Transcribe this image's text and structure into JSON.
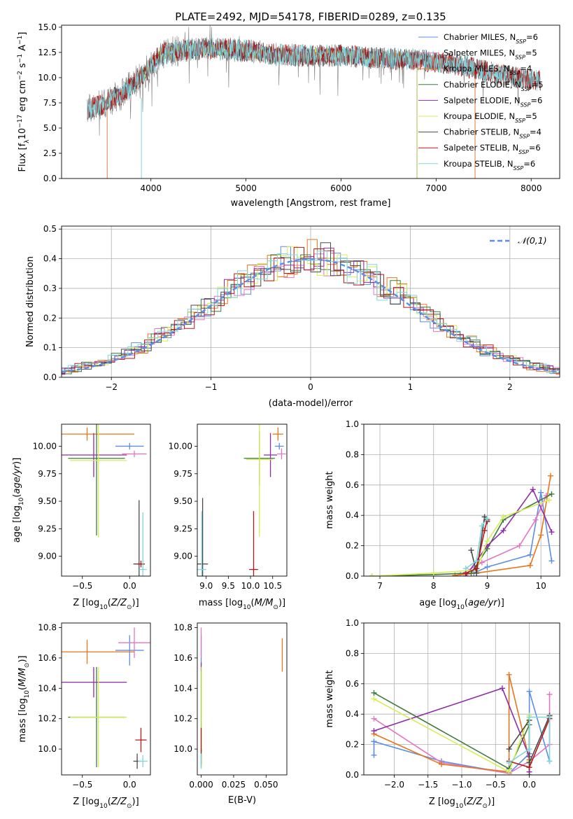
{
  "figure": {
    "title": "PLATE=2492, MJD=54178, FIBERID=0289, z=0.135"
  },
  "colors": {
    "Chabrier MILES": "#5b8ee6",
    "Salpeter MILES": "#e377c2",
    "Kroupa MILES": "#e8751a",
    "Chabrier ELODIE": "#3d7a3d",
    "Salpeter ELODIE": "#8e2ca8",
    "Kroupa ELODIE": "#d4ee57",
    "Chabrier STELIB": "#4a4a4a",
    "Salpeter STELIB": "#b51818",
    "Kroupa STELIB": "#7fd6dc",
    "data": "#808080"
  },
  "chart_data": [
    {
      "id": "spectrum",
      "type": "line",
      "xlabel": "wavelength [Angstrom, rest frame]",
      "ylabel": "Flux [f_λ 10^-17 erg cm^-2 s^-1 A^-1]",
      "xlim": [
        3060,
        8300
      ],
      "ylim": [
        0,
        15.2
      ],
      "xticks": [
        4000,
        5000,
        6000,
        7000,
        8000
      ],
      "yticks": [
        0.0,
        2.5,
        5.0,
        7.5,
        10.0,
        12.5,
        15.0
      ],
      "legend": "top-right",
      "legend_entries": [
        {
          "model": "Chabrier MILES",
          "prefix": "Chabrier MILES, N",
          "sub": "SSP",
          "suffix": "=6"
        },
        {
          "model": "Salpeter MILES",
          "prefix": "Salpeter MILES, N",
          "sub": "SSP",
          "suffix": "=5"
        },
        {
          "model": "Kroupa MILES",
          "prefix": "Kroupa MILES, N",
          "sub": "SSP",
          "suffix": "=4"
        },
        {
          "model": "Chabrier ELODIE",
          "prefix": "Chabrier ELODIE, N",
          "sub": "SSP",
          "suffix": "=5"
        },
        {
          "model": "Salpeter ELODIE",
          "prefix": "Salpeter ELODIE, N",
          "sub": "SSP",
          "suffix": "=6"
        },
        {
          "model": "Kroupa ELODIE",
          "prefix": "Kroupa ELODIE, N",
          "sub": "SSP",
          "suffix": "=5"
        },
        {
          "model": "Chabrier STELIB",
          "prefix": "Chabrier STELIB, N",
          "sub": "SSP",
          "suffix": "=4"
        },
        {
          "model": "Salpeter STELIB",
          "prefix": "Salpeter STELIB, N",
          "sub": "SSP",
          "suffix": "=6"
        },
        {
          "model": "Kroupa STELIB",
          "prefix": "Kroupa STELIB, N",
          "sub": "SSP",
          "suffix": "=6"
        }
      ],
      "continuum": {
        "x": [
          3330,
          3500,
          3700,
          3900,
          4100,
          4300,
          4600,
          5000,
          5300,
          5600,
          6000,
          6400,
          6800,
          7200,
          7600,
          8000,
          8100
        ],
        "y": [
          6.8,
          7.4,
          8.4,
          10.1,
          12.3,
          12.7,
          12.9,
          12.7,
          12.3,
          12.2,
          12.2,
          11.9,
          11.8,
          11.3,
          10.5,
          9.8,
          9.6
        ]
      },
      "model_ranges": [
        {
          "model": "Chabrier MILES",
          "x0": 3540,
          "x1": 7410
        },
        {
          "model": "Salpeter MILES",
          "x0": 3540,
          "x1": 7410
        },
        {
          "model": "Kroupa MILES",
          "x0": 3540,
          "x1": 7410
        },
        {
          "model": "Chabrier ELODIE",
          "x0": 3900,
          "x1": 6800
        },
        {
          "model": "Salpeter ELODIE",
          "x0": 3900,
          "x1": 6800
        },
        {
          "model": "Kroupa ELODIE",
          "x0": 3900,
          "x1": 6800
        },
        {
          "model": "Chabrier STELIB",
          "x0": 3330,
          "x1": 8100
        },
        {
          "model": "Salpeter STELIB",
          "x0": 3330,
          "x1": 8100
        },
        {
          "model": "Kroupa STELIB",
          "x0": 3330,
          "x1": 8100
        }
      ]
    },
    {
      "id": "residuals",
      "type": "step",
      "xlabel": "(data-model)/error",
      "ylabel": "Normed distribution",
      "xlim": [
        -2.5,
        2.5
      ],
      "ylim": [
        0,
        0.51
      ],
      "xticks": [
        -2,
        -1,
        0,
        1,
        2
      ],
      "yticks": [
        0.0,
        0.1,
        0.2,
        0.3,
        0.4,
        0.5
      ],
      "bin_width": 0.1,
      "reference": {
        "label": "𝒩(0,1)",
        "mean": 0,
        "sigma": 1
      },
      "legend": "top-right",
      "grid": true
    },
    {
      "id": "age-vs-Z",
      "type": "errorbar",
      "xlabel": "Z [log10(Z/Z⊙)]",
      "ylabel": "age  [log10(age/yr)]",
      "xlim": [
        -0.72,
        0.22
      ],
      "ylim": [
        8.82,
        10.2
      ],
      "xticks": [
        -0.5,
        0.0
      ],
      "yticks": [
        9.0,
        9.25,
        9.5,
        9.75,
        10.0
      ],
      "points": [
        {
          "model": "Chabrier MILES",
          "x": 0.0,
          "y": 10.0,
          "xerr": 0.15,
          "yerr": 0.03
        },
        {
          "model": "Salpeter MILES",
          "x": 0.05,
          "y": 9.93,
          "xerr": 0.13,
          "yerr": 0.03
        },
        {
          "model": "Kroupa MILES",
          "x": -0.45,
          "y": 10.11,
          "xerr": 0.5,
          "yerr": 0.06
        },
        {
          "model": "Chabrier ELODIE",
          "x": -0.35,
          "y": 9.89,
          "xerr": 0.3,
          "yerr": 0.7
        },
        {
          "model": "Salpeter ELODIE",
          "x": -0.38,
          "y": 9.92,
          "xerr": 0.35,
          "yerr": 0.2
        },
        {
          "model": "Kroupa ELODIE",
          "x": -0.33,
          "y": 9.87,
          "xerr": 0.3,
          "yerr": 0.7
        },
        {
          "model": "Chabrier STELIB",
          "x": 0.1,
          "y": 8.93,
          "xerr": 0.06,
          "yerr": 0.58
        },
        {
          "model": "Salpeter STELIB",
          "x": 0.12,
          "y": 8.93,
          "xerr": 0.04,
          "yerr": 0.03
        },
        {
          "model": "Kroupa STELIB",
          "x": 0.14,
          "y": 8.88,
          "xerr": 0.04,
          "yerr": 0.52
        }
      ]
    },
    {
      "id": "age-vs-mass",
      "type": "errorbar",
      "xlabel": "mass [log10(M/M⊙)]",
      "ylabel": "",
      "xlim": [
        8.8,
        10.82
      ],
      "ylim": [
        8.82,
        10.2
      ],
      "xticks": [
        9.0,
        9.5,
        10.0,
        10.5
      ],
      "yticks": [
        9.0,
        9.25,
        9.5,
        9.75,
        10.0
      ],
      "points": [
        {
          "model": "Chabrier MILES",
          "x": 10.65,
          "y": 10.0,
          "xerr": 0.1,
          "yerr": 0.03
        },
        {
          "model": "Salpeter MILES",
          "x": 10.7,
          "y": 9.93,
          "xerr": 0.1,
          "yerr": 0.05
        },
        {
          "model": "Kroupa MILES",
          "x": 10.62,
          "y": 10.11,
          "xerr": 0.12,
          "yerr": 0.06
        },
        {
          "model": "Chabrier ELODIE",
          "x": 10.2,
          "y": 9.89,
          "xerr": 0.35,
          "yerr": 0.25
        },
        {
          "model": "Salpeter ELODIE",
          "x": 10.45,
          "y": 9.92,
          "xerr": 0.15,
          "yerr": 0.2
        },
        {
          "model": "Kroupa ELODIE",
          "x": 10.2,
          "y": 9.88,
          "xerr": 0.3,
          "yerr": 0.7
        },
        {
          "model": "Chabrier STELIB",
          "x": 8.92,
          "y": 8.93,
          "xerr": 0.12,
          "yerr": 0.6
        },
        {
          "model": "Salpeter STELIB",
          "x": 10.07,
          "y": 8.88,
          "xerr": 0.1,
          "yerr": 0.53
        },
        {
          "model": "Kroupa STELIB",
          "x": 8.9,
          "y": 8.88,
          "xerr": 0.1,
          "yerr": 0.53
        }
      ]
    },
    {
      "id": "mass-vs-Z",
      "type": "errorbar",
      "xlabel": "Z [log10(Z/Z⊙)]",
      "ylabel": "mass [log10(M/M⊙)]",
      "xlim": [
        -0.72,
        0.22
      ],
      "ylim": [
        9.83,
        10.83
      ],
      "xticks": [
        -0.5,
        0.0
      ],
      "yticks": [
        10.0,
        10.2,
        10.4,
        10.6,
        10.8
      ],
      "points": [
        {
          "model": "Chabrier MILES",
          "x": 0.0,
          "y": 10.65,
          "xerr": 0.15,
          "yerr": 0.1
        },
        {
          "model": "Salpeter MILES",
          "x": 0.05,
          "y": 10.7,
          "xerr": 0.17,
          "yerr": 0.1
        },
        {
          "model": "Kroupa MILES",
          "x": -0.45,
          "y": 10.64,
          "xerr": 0.5,
          "yerr": 0.08
        },
        {
          "model": "Chabrier ELODIE",
          "x": -0.35,
          "y": 10.21,
          "xerr": 0.3,
          "yerr": 0.33
        },
        {
          "model": "Salpeter ELODIE",
          "x": -0.38,
          "y": 10.44,
          "xerr": 0.35,
          "yerr": 0.1
        },
        {
          "model": "Kroupa ELODIE",
          "x": -0.33,
          "y": 10.21,
          "xerr": 0.3,
          "yerr": 0.33
        },
        {
          "model": "Chabrier STELIB",
          "x": 0.08,
          "y": 9.92,
          "xerr": 0.04,
          "yerr": 0.05
        },
        {
          "model": "Salpeter STELIB",
          "x": 0.12,
          "y": 10.06,
          "xerr": 0.06,
          "yerr": 0.08
        },
        {
          "model": "Kroupa STELIB",
          "x": 0.14,
          "y": 9.92,
          "xerr": 0.05,
          "yerr": 0.04
        }
      ]
    },
    {
      "id": "mass-vs-EBV",
      "type": "errorbar",
      "xlabel": "E(B-V)",
      "ylabel": "",
      "xlim": [
        -0.003,
        0.066
      ],
      "ylim": [
        9.83,
        10.83
      ],
      "xticks": [
        0.0,
        0.025,
        0.05
      ],
      "xticklabels": [
        "0.000",
        "0.025",
        "0.050"
      ],
      "yticks": [
        10.0,
        10.2,
        10.4,
        10.6,
        10.8
      ],
      "points": [
        {
          "model": "Chabrier MILES",
          "x": 0.0,
          "y": 10.65,
          "xerr": 0.0,
          "yerr": 0.1
        },
        {
          "model": "Salpeter MILES",
          "x": 0.0,
          "y": 10.7,
          "xerr": 0.0,
          "yerr": 0.1
        },
        {
          "model": "Kroupa MILES",
          "x": 0.0625,
          "y": 10.62,
          "xerr": 0.0,
          "yerr": 0.11
        },
        {
          "model": "Chabrier ELODIE",
          "x": 0.0,
          "y": 10.21,
          "xerr": 0.0,
          "yerr": 0.33
        },
        {
          "model": "Salpeter ELODIE",
          "x": 0.0,
          "y": 10.54,
          "xerr": 0.0,
          "yerr": 0.03
        },
        {
          "model": "Kroupa ELODIE",
          "x": 0.0002,
          "y": 10.21,
          "xerr": 0.0,
          "yerr": 0.33
        },
        {
          "model": "Chabrier STELIB",
          "x": 0.0,
          "y": 9.95,
          "xerr": 0.0,
          "yerr": 0.05
        },
        {
          "model": "Salpeter STELIB",
          "x": 0.0,
          "y": 10.06,
          "xerr": 0.0,
          "yerr": 0.08
        },
        {
          "model": "Kroupa STELIB",
          "x": 0.0,
          "y": 9.92,
          "xerr": 0.0,
          "yerr": 0.05
        }
      ]
    },
    {
      "id": "weight-vs-age",
      "type": "line",
      "xlabel": "age  [log10(age/yr)]",
      "ylabel": "mass weight",
      "xlim": [
        6.7,
        10.35
      ],
      "ylim": [
        0,
        1.0
      ],
      "xticks": [
        7,
        8,
        9,
        10
      ],
      "yticks": [
        0.0,
        0.2,
        0.4,
        0.6,
        0.8,
        1.0
      ],
      "grid": true,
      "series": [
        {
          "model": "Chabrier MILES",
          "x": [
            8.75,
            9.0,
            9.8,
            10.0,
            10.2
          ],
          "y": [
            0.02,
            0.06,
            0.14,
            0.55,
            0.1
          ]
        },
        {
          "model": "Salpeter MILES",
          "x": [
            8.5,
            8.9,
            9.6,
            9.9,
            10.1
          ],
          "y": [
            0.01,
            0.09,
            0.2,
            0.37,
            0.53
          ]
        },
        {
          "model": "Kroupa MILES",
          "x": [
            8.4,
            8.8,
            9.8,
            10.0,
            10.18
          ],
          "y": [
            0.005,
            0.02,
            0.07,
            0.27,
            0.66
          ]
        },
        {
          "model": "Chabrier ELODIE",
          "x": [
            6.85,
            8.0,
            8.7,
            9.0,
            9.3,
            10.2
          ],
          "y": [
            0.0,
            0.01,
            0.02,
            0.18,
            0.37,
            0.54
          ]
        },
        {
          "model": "Salpeter ELODIE",
          "x": [
            8.6,
            9.0,
            9.3,
            9.85,
            10.2
          ],
          "y": [
            0.0,
            0.2,
            0.3,
            0.57,
            0.29
          ]
        },
        {
          "model": "Kroupa ELODIE",
          "x": [
            6.85,
            8.0,
            8.8,
            9.0,
            9.3,
            10.15
          ],
          "y": [
            0.0,
            0.02,
            0.04,
            0.23,
            0.39,
            0.5
          ]
        },
        {
          "model": "Chabrier STELIB",
          "x": [
            8.7,
            8.8,
            8.95,
            9.0
          ],
          "y": [
            0.17,
            0.02,
            0.39,
            0.36
          ]
        },
        {
          "model": "Salpeter STELIB",
          "x": [
            8.6,
            8.8,
            8.95,
            9.0
          ],
          "y": [
            0.02,
            0.05,
            0.3,
            0.37
          ]
        },
        {
          "model": "Kroupa STELIB",
          "x": [
            8.6,
            8.8,
            8.9,
            9.0
          ],
          "y": [
            0.05,
            0.1,
            0.33,
            0.38
          ]
        }
      ]
    },
    {
      "id": "weight-vs-Z",
      "type": "line",
      "xlabel": "Z [log10(Z/Z⊙)]",
      "ylabel": "mass weight",
      "xlim": [
        -2.45,
        0.45
      ],
      "ylim": [
        0,
        1.0
      ],
      "xticks": [
        -2.0,
        -1.5,
        -1.0,
        -0.5,
        0.0
      ],
      "yticks": [
        0.0,
        0.2,
        0.4,
        0.6,
        0.8,
        1.0
      ],
      "grid": true,
      "series": [
        {
          "model": "Chabrier MILES",
          "x": [
            -2.3,
            -2.3,
            -1.3,
            -0.3,
            0.0,
            0.0,
            0.3
          ],
          "y": [
            0.13,
            0.22,
            0.09,
            0.01,
            0.14,
            0.55,
            0.09
          ]
        },
        {
          "model": "Salpeter MILES",
          "x": [
            -2.3,
            -1.3,
            -0.3,
            0.0,
            0.3,
            0.3
          ],
          "y": [
            0.37,
            0.08,
            0.01,
            0.09,
            0.2,
            0.53
          ]
        },
        {
          "model": "Kroupa MILES",
          "x": [
            -2.3,
            -1.3,
            -0.3,
            -0.3,
            0.0
          ],
          "y": [
            0.27,
            0.07,
            0.02,
            0.66,
            0.1
          ]
        },
        {
          "model": "Chabrier ELODIE",
          "x": [
            -2.3,
            -0.3,
            0.0,
            0.0
          ],
          "y": [
            0.54,
            0.04,
            0.33,
            0.0
          ]
        },
        {
          "model": "Salpeter ELODIE",
          "x": [
            -2.3,
            -0.4,
            0.0,
            0.0
          ],
          "y": [
            0.29,
            0.57,
            0.12,
            0.02
          ]
        },
        {
          "model": "Kroupa ELODIE",
          "x": [
            -2.3,
            -0.3,
            0.0,
            0.0
          ],
          "y": [
            0.5,
            0.02,
            0.39,
            0.09
          ]
        },
        {
          "model": "Chabrier STELIB",
          "x": [
            -0.3,
            0.0,
            0.0,
            0.3
          ],
          "y": [
            0.17,
            0.36,
            0.08,
            0.39
          ]
        },
        {
          "model": "Salpeter STELIB",
          "x": [
            -0.3,
            0.0,
            0.3
          ],
          "y": [
            0.09,
            0.05,
            0.37
          ]
        },
        {
          "model": "Kroupa STELIB",
          "x": [
            -0.3,
            0.0,
            0.0,
            0.3,
            0.3
          ],
          "y": [
            0.08,
            0.17,
            0.38,
            0.38,
            0.09
          ]
        }
      ]
    }
  ]
}
